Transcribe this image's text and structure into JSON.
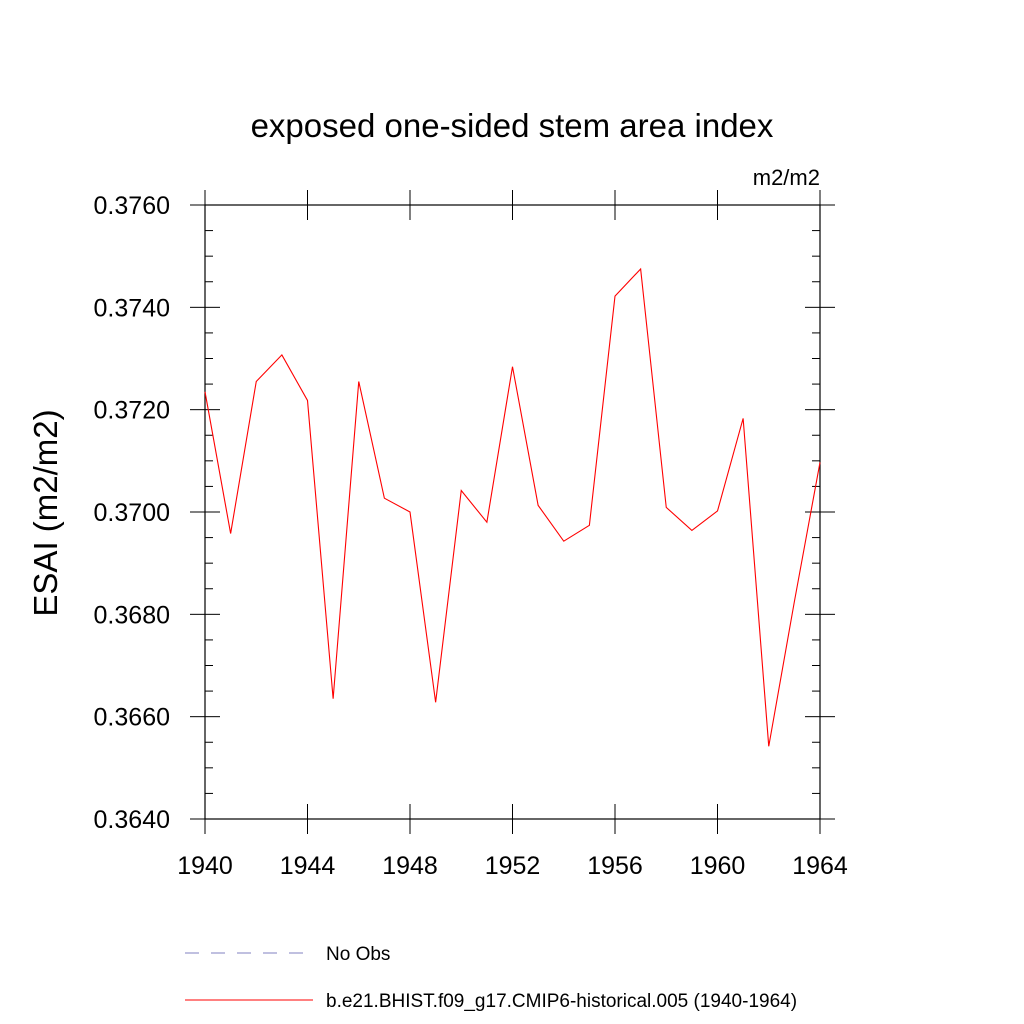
{
  "chart_data": {
    "type": "line",
    "title": "exposed one-sided stem area index",
    "units_label": "m2/m2",
    "xlabel": "",
    "ylabel": "ESAI  (m2/m2)",
    "xlim": [
      1940,
      1964
    ],
    "ylim": [
      0.364,
      0.376
    ],
    "x_ticks": [
      "1940",
      "1944",
      "1948",
      "1952",
      "1956",
      "1960",
      "1964"
    ],
    "y_ticks": [
      "0.3640",
      "0.3660",
      "0.3680",
      "0.3700",
      "0.3720",
      "0.3740",
      "0.3760"
    ],
    "series": [
      {
        "name": "b.e21.BHIST.f09_g17.CMIP6-historical.005 (1940-1964)",
        "color": "#ff0000",
        "style": "solid",
        "x": [
          1940,
          1941,
          1942,
          1943,
          1944,
          1945,
          1946,
          1947,
          1948,
          1949,
          1950,
          1951,
          1952,
          1953,
          1954,
          1955,
          1956,
          1957,
          1958,
          1959,
          1960,
          1961,
          1962,
          1963,
          1964
        ],
        "values": [
          0.37235,
          0.36958,
          0.37255,
          0.37307,
          0.37218,
          0.36635,
          0.37255,
          0.37027,
          0.37,
          0.36628,
          0.37042,
          0.3698,
          0.37284,
          0.37013,
          0.36943,
          0.36974,
          0.37422,
          0.37475,
          0.37009,
          0.36964,
          0.37002,
          0.37183,
          0.36542,
          0.36825,
          0.37097
        ]
      }
    ],
    "legend": [
      {
        "label": "No Obs",
        "color": "#8080c0",
        "style": "dashed"
      },
      {
        "label": "b.e21.BHIST.f09_g17.CMIP6-historical.005 (1940-1964)",
        "color": "#ff0000",
        "style": "solid"
      }
    ]
  }
}
